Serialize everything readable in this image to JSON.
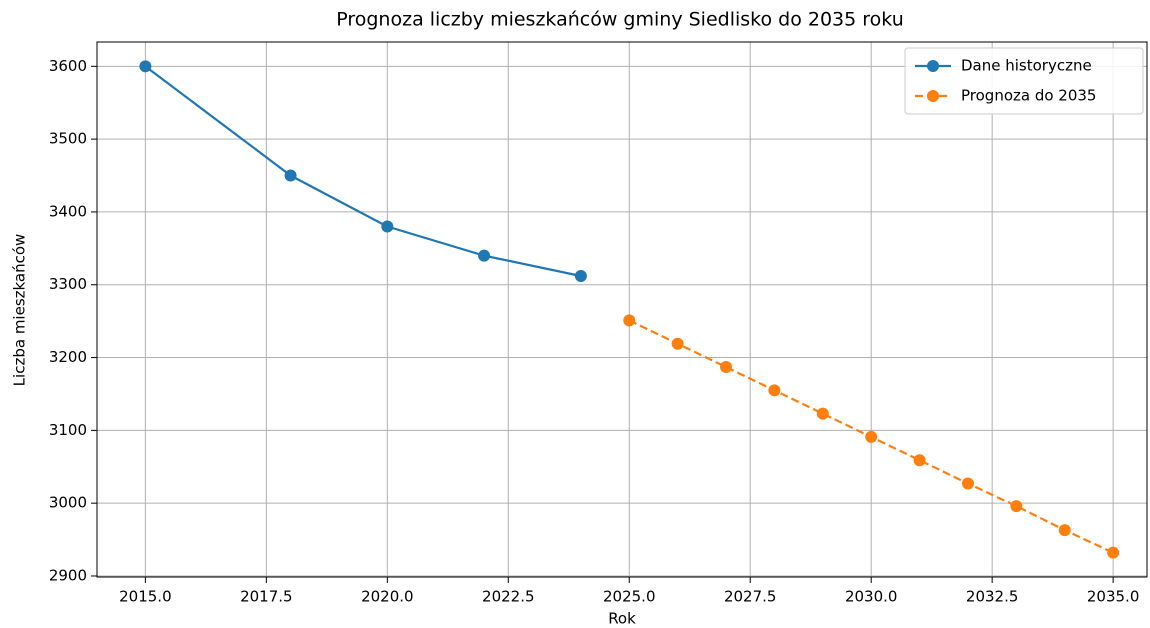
{
  "chart_data": {
    "type": "line",
    "title": "Prognoza liczby mieszkańców gminy Siedlisko do 2035 roku",
    "xlabel": "Rok",
    "ylabel": "Liczba mieszkańców",
    "series": [
      {
        "name": "Dane historyczne",
        "color": "#1f77b4",
        "linestyle": "solid",
        "x": [
          2015,
          2018,
          2020,
          2022,
          2024
        ],
        "values": [
          3600,
          3450,
          3380,
          3340,
          3312
        ]
      },
      {
        "name": "Prognoza do 2035",
        "color": "#ff7f0e",
        "linestyle": "dashed",
        "x": [
          2025,
          2026,
          2027,
          2028,
          2029,
          2030,
          2031,
          2032,
          2033,
          2034,
          2035
        ],
        "values": [
          3251,
          3219,
          3187,
          3155,
          3123,
          3091,
          3059,
          3027,
          2996,
          2963,
          2932
        ]
      }
    ],
    "xlim": [
      2014,
      2035.7
    ],
    "ylim": [
      2898.6,
      3633.4
    ],
    "xticks": [
      {
        "value": 2015,
        "label": "2015.0"
      },
      {
        "value": 2017.5,
        "label": "2017.5"
      },
      {
        "value": 2020,
        "label": "2020.0"
      },
      {
        "value": 2022.5,
        "label": "2022.5"
      },
      {
        "value": 2025,
        "label": "2025.0"
      },
      {
        "value": 2027.5,
        "label": "2027.5"
      },
      {
        "value": 2030,
        "label": "2030.0"
      },
      {
        "value": 2032.5,
        "label": "2032.5"
      },
      {
        "value": 2035,
        "label": "2035.0"
      }
    ],
    "yticks": [
      2900,
      3000,
      3100,
      3200,
      3300,
      3400,
      3500,
      3600
    ],
    "grid": true,
    "legend": "upper right"
  }
}
